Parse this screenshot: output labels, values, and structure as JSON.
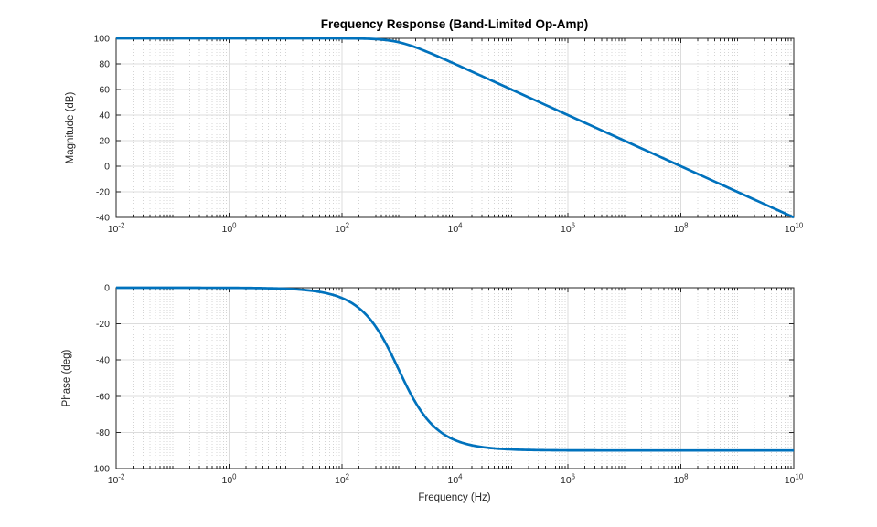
{
  "figure": {
    "title": "Frequency Response (Band-Limited Op-Amp)",
    "background_color": "#ffffff",
    "line_color": "#0072BD",
    "axis_color": "#262626",
    "major_grid_color": "#dcdcdc",
    "minor_grid_color": "#d4d4d4"
  },
  "chart_data": [
    {
      "type": "line",
      "title": "Frequency Response (Band-Limited Op-Amp)",
      "xlabel": "",
      "ylabel": "Magnitude (dB)",
      "x_scale": "log",
      "xlim_exponents": [
        -2,
        10
      ],
      "ylim": [
        -40,
        100
      ],
      "x_tick_exponents": [
        -2,
        0,
        2,
        4,
        6,
        8,
        10
      ],
      "y_ticks": [
        -40,
        -20,
        0,
        20,
        40,
        60,
        80,
        100
      ],
      "grid": true,
      "minor_grid": true,
      "legend": "none",
      "model": {
        "dc_gain_db": 100,
        "pole_hz": 1000,
        "rolloff_db_per_decade": -20
      },
      "x_exponents": [
        -2,
        -1,
        0,
        1,
        2,
        2.5,
        3,
        3.5,
        4,
        4.5,
        5,
        6,
        7,
        8,
        9,
        10
      ],
      "values": [
        100,
        100,
        100,
        100,
        99.96,
        99.59,
        96.99,
        89.59,
        79.96,
        70.0,
        60.0,
        40.0,
        20.0,
        0.0,
        -20.0,
        -40.0
      ]
    },
    {
      "type": "line",
      "title": "",
      "xlabel": "Frequency (Hz)",
      "ylabel": "Phase (deg)",
      "x_scale": "log",
      "xlim_exponents": [
        -2,
        10
      ],
      "ylim": [
        -100,
        0
      ],
      "x_tick_exponents": [
        -2,
        0,
        2,
        4,
        6,
        8,
        10
      ],
      "y_ticks": [
        -100,
        -80,
        -60,
        -40,
        -20,
        0
      ],
      "grid": true,
      "minor_grid": true,
      "legend": "none",
      "model": {
        "pole_hz": 1000,
        "phase_low_deg": 0,
        "phase_high_deg": -90,
        "phase_at_pole_deg": -45
      },
      "x_exponents": [
        -2,
        -1,
        0,
        1,
        2,
        2.5,
        3,
        3.5,
        4,
        4.5,
        5,
        6,
        7,
        8,
        9,
        10
      ],
      "values": [
        0,
        -0.01,
        -0.06,
        -0.57,
        -5.71,
        -17.55,
        -45.0,
        -72.45,
        -84.29,
        -88.19,
        -89.43,
        -89.94,
        -89.99,
        -90.0,
        -90.0,
        -90.0
      ]
    }
  ]
}
